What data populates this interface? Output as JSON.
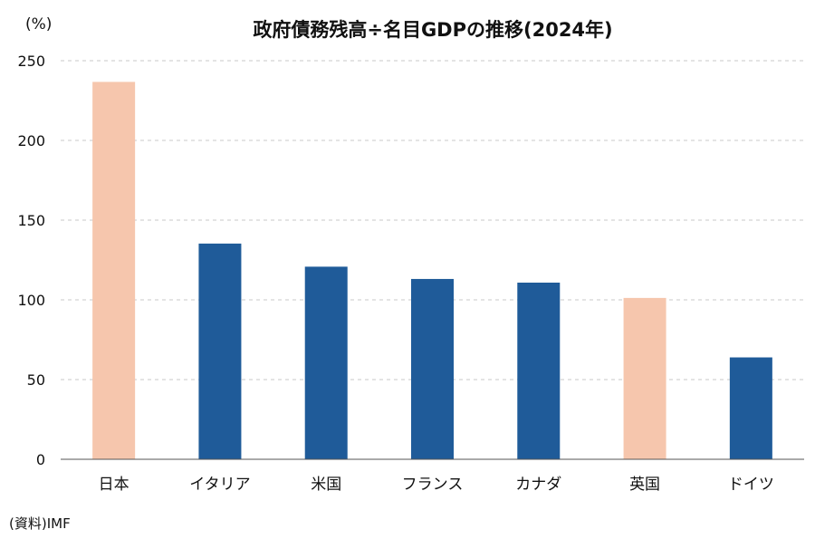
{
  "chart_data": {
    "type": "bar",
    "title": "政府債務残高÷名目GDPの推移(2024年)",
    "ylabel": "(%)",
    "source": "(資料)IMF",
    "categories": [
      "日本",
      "イタリア",
      "米国",
      "フランス",
      "カナダ",
      "英国",
      "ドイツ"
    ],
    "values": [
      236.7,
      135.3,
      120.8,
      113.1,
      110.8,
      101.2,
      63.9
    ],
    "ylim": [
      0,
      250
    ],
    "yticks": [
      0,
      50,
      100,
      150,
      200,
      250
    ],
    "grid": true,
    "colors": {
      "highlight": "#f6c6ad",
      "default": "#1f5b99"
    },
    "highlight_categories": [
      "日本",
      "英国"
    ]
  }
}
